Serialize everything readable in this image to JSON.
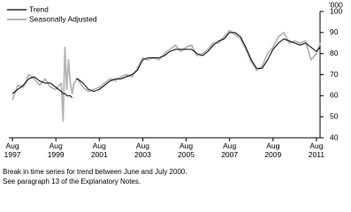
{
  "chart_data": {
    "type": "line",
    "y_unit": "'000",
    "x": [
      "1997-08",
      "1997-11",
      "1998-02",
      "1998-05",
      "1998-08",
      "1998-11",
      "1999-02",
      "1999-05",
      "1999-08",
      "1999-11",
      "1999-12",
      "2000-01",
      "2000-02",
      "2000-03",
      "2000-04",
      "2000-05",
      "2000-06",
      "2000-07",
      "2000-08",
      "2000-11",
      "2001-02",
      "2001-05",
      "2001-08",
      "2001-11",
      "2002-02",
      "2002-05",
      "2002-08",
      "2002-11",
      "2003-02",
      "2003-05",
      "2003-08",
      "2003-11",
      "2004-02",
      "2004-05",
      "2004-08",
      "2004-11",
      "2005-02",
      "2005-05",
      "2005-08",
      "2005-11",
      "2006-02",
      "2006-05",
      "2006-08",
      "2006-11",
      "2007-02",
      "2007-05",
      "2007-08",
      "2007-11",
      "2008-02",
      "2008-05",
      "2008-08",
      "2008-11",
      "2009-02",
      "2009-05",
      "2009-08",
      "2009-11",
      "2010-02",
      "2010-05",
      "2010-08",
      "2010-11",
      "2011-02",
      "2011-05",
      "2011-08",
      "2011-10"
    ],
    "series": [
      {
        "name": "Trend",
        "color": "#000000",
        "width": 1,
        "values": [
          61,
          63,
          65,
          68,
          69,
          67,
          66,
          66,
          64,
          62,
          61,
          61,
          60,
          60,
          60,
          59,
          null,
          68,
          68,
          66,
          63,
          62,
          63,
          65,
          67,
          68,
          68,
          69,
          70,
          72,
          77,
          78,
          78,
          78,
          79,
          81,
          82,
          82,
          82,
          82,
          80,
          79,
          81,
          84,
          86,
          87,
          90,
          90,
          88,
          83,
          77,
          73,
          73,
          77,
          82,
          85,
          87,
          86,
          85,
          84,
          85,
          83,
          81,
          83
        ]
      },
      {
        "name": "Seasonally Adjusted",
        "color": "#b4b4b4",
        "width": 1.8,
        "values": [
          58,
          65,
          64,
          70,
          68,
          65,
          68,
          64,
          63,
          66,
          48,
          83,
          63,
          77,
          66,
          61,
          66,
          67,
          68,
          64,
          62,
          63,
          64,
          66,
          68,
          67,
          69,
          70,
          69,
          73,
          78,
          77,
          78,
          77,
          80,
          82,
          84,
          81,
          83,
          84,
          79,
          80,
          82,
          85,
          85,
          88,
          91,
          89,
          87,
          82,
          76,
          72,
          74,
          80,
          83,
          88,
          90,
          85,
          86,
          85,
          86,
          77,
          80,
          85
        ]
      }
    ],
    "xlim": [
      "1997-06",
      "2011-10"
    ],
    "xticks": [
      {
        "value": "1997-08",
        "label": "Aug 1997"
      },
      {
        "value": "1999-08",
        "label": "Aug 1999"
      },
      {
        "value": "2001-08",
        "label": "Aug 2001"
      },
      {
        "value": "2003-08",
        "label": "Aug 2003"
      },
      {
        "value": "2005-08",
        "label": "Aug 2005"
      },
      {
        "value": "2007-08",
        "label": "Aug 2007"
      },
      {
        "value": "2009-08",
        "label": "Aug 2009"
      },
      {
        "value": "2011-08",
        "label": "Aug 2011"
      }
    ],
    "ylim": [
      40,
      100
    ],
    "yticks": [
      40,
      50,
      60,
      70,
      80,
      90,
      100
    ],
    "grid": false,
    "legend": "top-left",
    "notes": [
      "Break in time series for trend between June and July 2000.",
      "See paragraph 13 of the Explanatory Notes."
    ]
  }
}
